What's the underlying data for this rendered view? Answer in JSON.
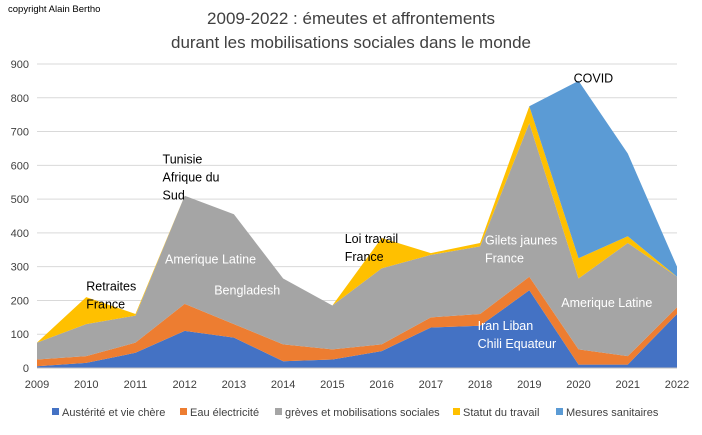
{
  "copyright": "copyright Alain Bertho",
  "title_line1": "2009-2022 : émeutes et affrontements",
  "title_line2": "durant les mobilisations sociales dans le monde",
  "chart_data": {
    "type": "area",
    "stacked": true,
    "categories": [
      "2009",
      "2010",
      "2011",
      "2012",
      "2013",
      "2014",
      "2015",
      "2016",
      "2017",
      "2018",
      "2019",
      "2020",
      "2021",
      "2022"
    ],
    "ylim": [
      0,
      900
    ],
    "yticks": [
      0,
      100,
      200,
      300,
      400,
      500,
      600,
      700,
      800,
      900
    ],
    "grid": true,
    "legend_position": "bottom",
    "series": [
      {
        "name": "Austérité et vie chère",
        "color": "#4472C4",
        "values": [
          5,
          15,
          45,
          110,
          90,
          20,
          25,
          50,
          120,
          125,
          230,
          10,
          10,
          160
        ]
      },
      {
        "name": "Eau électricité",
        "color": "#ED7D31",
        "values": [
          20,
          20,
          30,
          80,
          40,
          50,
          30,
          20,
          30,
          35,
          40,
          45,
          25,
          20
        ]
      },
      {
        "name": "grèves et mobilisations sociales",
        "color": "#A5A5A5",
        "values": [
          50,
          95,
          80,
          320,
          325,
          195,
          130,
          225,
          185,
          200,
          455,
          210,
          335,
          90
        ]
      },
      {
        "name": "Statut du travail",
        "color": "#FFC000",
        "values": [
          0,
          80,
          5,
          0,
          0,
          0,
          0,
          90,
          5,
          10,
          50,
          60,
          20,
          0
        ]
      },
      {
        "name": "Mesures sanitaires",
        "color": "#5B9BD5",
        "values": [
          0,
          0,
          0,
          0,
          0,
          0,
          0,
          0,
          0,
          0,
          0,
          525,
          245,
          30
        ]
      }
    ],
    "annotations": [
      {
        "lines": [
          "Retraites",
          "France"
        ],
        "year": 2010,
        "value": 230,
        "style": "dark"
      },
      {
        "lines": [
          "Tunisie",
          "Afrique du",
          "Sud"
        ],
        "year": 2011.55,
        "value": 605,
        "style": "dark"
      },
      {
        "lines": [
          "Amerique Latine"
        ],
        "year": 2011.6,
        "value": 310,
        "style": "light"
      },
      {
        "lines": [
          "Bengladesh"
        ],
        "year": 2012.6,
        "value": 218,
        "style": "light"
      },
      {
        "lines": [
          "Loi travail",
          "France"
        ],
        "year": 2015.25,
        "value": 370,
        "style": "dark"
      },
      {
        "lines": [
          "Gilets jaunes",
          "France"
        ],
        "year": 2018.1,
        "value": 365,
        "style": "light"
      },
      {
        "lines": [
          "COVID"
        ],
        "year": 2019.9,
        "value": 845,
        "style": "dark"
      },
      {
        "lines": [
          "Amerique Latine"
        ],
        "year": 2019.65,
        "value": 180,
        "style": "light"
      },
      {
        "lines": [
          "Iran Liban",
          "Chili Equateur"
        ],
        "year": 2017.95,
        "value": 112,
        "style": "light"
      }
    ]
  }
}
